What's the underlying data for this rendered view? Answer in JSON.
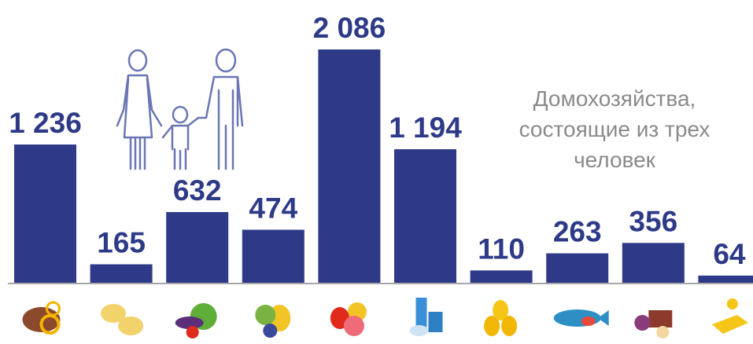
{
  "caption": {
    "lines": [
      "Домохозяйства,",
      "состоящие из трех",
      "человек"
    ]
  },
  "colors": {
    "bar": "#2e3a87",
    "value_text": "#2e3a87",
    "axis": "#8a8a8a",
    "caption_text": "#8a8a8a",
    "family_icon_stroke": "#6a76b3"
  },
  "icons": [
    "bread-icon",
    "potato-icon",
    "vegetables-icon",
    "fruit-icon",
    "meat-icon",
    "milk-icon",
    "eggs-icon",
    "fish-icon",
    "sweets-icon",
    "butter-icon"
  ],
  "chart_data": {
    "type": "bar",
    "categories": [
      "",
      "",
      "",
      "",
      "",
      "",
      "",
      "",
      "",
      ""
    ],
    "values": [
      1236,
      165,
      632,
      474,
      2086,
      1194,
      110,
      263,
      356,
      64
    ],
    "labels": [
      "1 236",
      "165",
      "632",
      "474",
      "2 086",
      "1 194",
      "110",
      "263",
      "356",
      "64"
    ],
    "ylim": [
      0,
      2086
    ],
    "grid": false
  }
}
